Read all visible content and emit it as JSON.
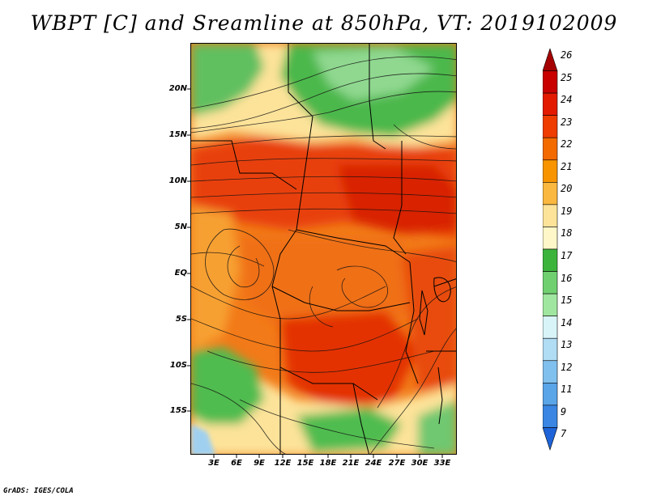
{
  "title": "WBPT [C] and Sreamline at 850hPa, VT: 2019102009",
  "footer": "GrADS: IGES/COLA",
  "map": {
    "lat_labels": [
      "20N",
      "15N",
      "10N",
      "5N",
      "EQ",
      "5S",
      "10S",
      "15S"
    ],
    "lon_labels": [
      "3E",
      "6E",
      "9E",
      "12E",
      "15E",
      "18E",
      "21E",
      "24E",
      "27E",
      "30E",
      "33E"
    ]
  },
  "colorbar": {
    "labels": [
      "26",
      "25",
      "24",
      "23",
      "22",
      "21",
      "20",
      "19",
      "18",
      "17",
      "16",
      "15",
      "14",
      "13",
      "12",
      "11",
      "9",
      "7"
    ],
    "colors": [
      "#a50000",
      "#c80000",
      "#e31a00",
      "#ef3c00",
      "#f36a00",
      "#f79400",
      "#fab840",
      "#fde39a",
      "#fff7c8",
      "#3cb43c",
      "#70d070",
      "#a0e6a0",
      "#d8f4f8",
      "#b0dcf4",
      "#80c0ee",
      "#5aa4e8",
      "#3a86e2",
      "#1e64d8"
    ]
  }
}
